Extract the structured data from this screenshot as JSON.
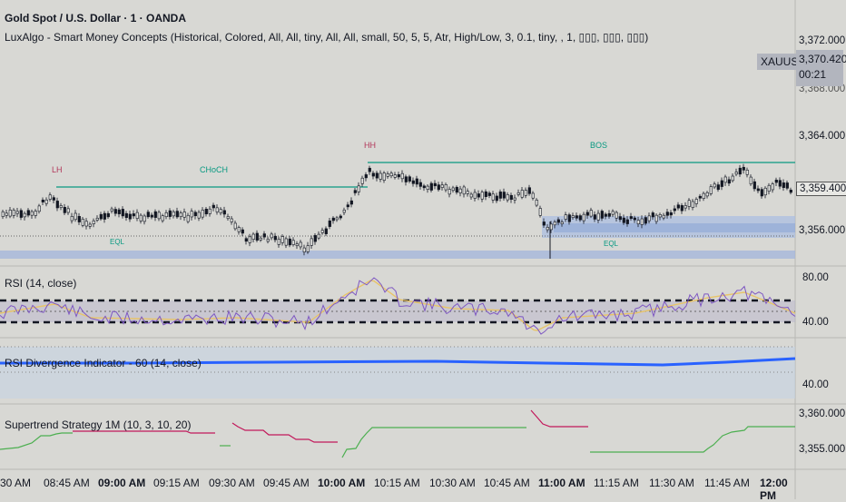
{
  "header": {
    "symbol_title": "Gold Spot / U.S. Dollar · 1 · OANDA",
    "indicator_line": "LuxAlgo - Smart Money Concepts (Historical, Colored, All, All, tiny, All, All, small, 50, 5, 5, Atr, High/Low, 3, 0.1, tiny, , 1, ▯▯▯, ▯▯▯, ▯▯▯)"
  },
  "main_pane": {
    "price_axis": [
      "3,372.000",
      "3,364.000",
      "3,360.000",
      "3,356.000"
    ],
    "symbol_badge": "XAUUSD",
    "last_price": "3,370.420",
    "countdown": "00:21",
    "partial_label": "3,368.000",
    "current_price_tag": "3,359.400",
    "smc_labels": {
      "lh": "LH",
      "choch": "CHoCH",
      "hh": "HH",
      "bos": "BOS",
      "eql1": "EQL",
      "eql2": "EQL"
    }
  },
  "rsi_pane": {
    "label": "RSI (14, close)",
    "axis": [
      "80.00",
      "40.00"
    ]
  },
  "rsi_div_pane": {
    "label": "RSI Divergence Indicator - 60 (14, close)",
    "axis": [
      "40.00"
    ]
  },
  "supertrend_pane": {
    "label": "Supertrend Strategy 1M (10, 3, 10, 20)",
    "axis": [
      "3,360.000",
      "3,355.000"
    ]
  },
  "time_axis": [
    "30 AM",
    "08:45 AM",
    "09:00 AM",
    "09:15 AM",
    "09:30 AM",
    "09:45 AM",
    "10:00 AM",
    "10:15 AM",
    "10:30 AM",
    "10:45 AM",
    "11:00 AM",
    "11:15 AM",
    "11:30 AM",
    "11:45 AM",
    "12:00 PM"
  ],
  "colors": {
    "background": "#d8d8d4",
    "bos_line": "#089981",
    "lh_label": "#b2375a",
    "candle": "#131722",
    "rsi_line": "#7e57c2",
    "rsi_ma": "#e8c468",
    "rsi_div_line": "#2962ff",
    "supertrend_up": "#4caf50",
    "supertrend_down": "#c2185b",
    "zone": "#9fb4dd"
  }
}
